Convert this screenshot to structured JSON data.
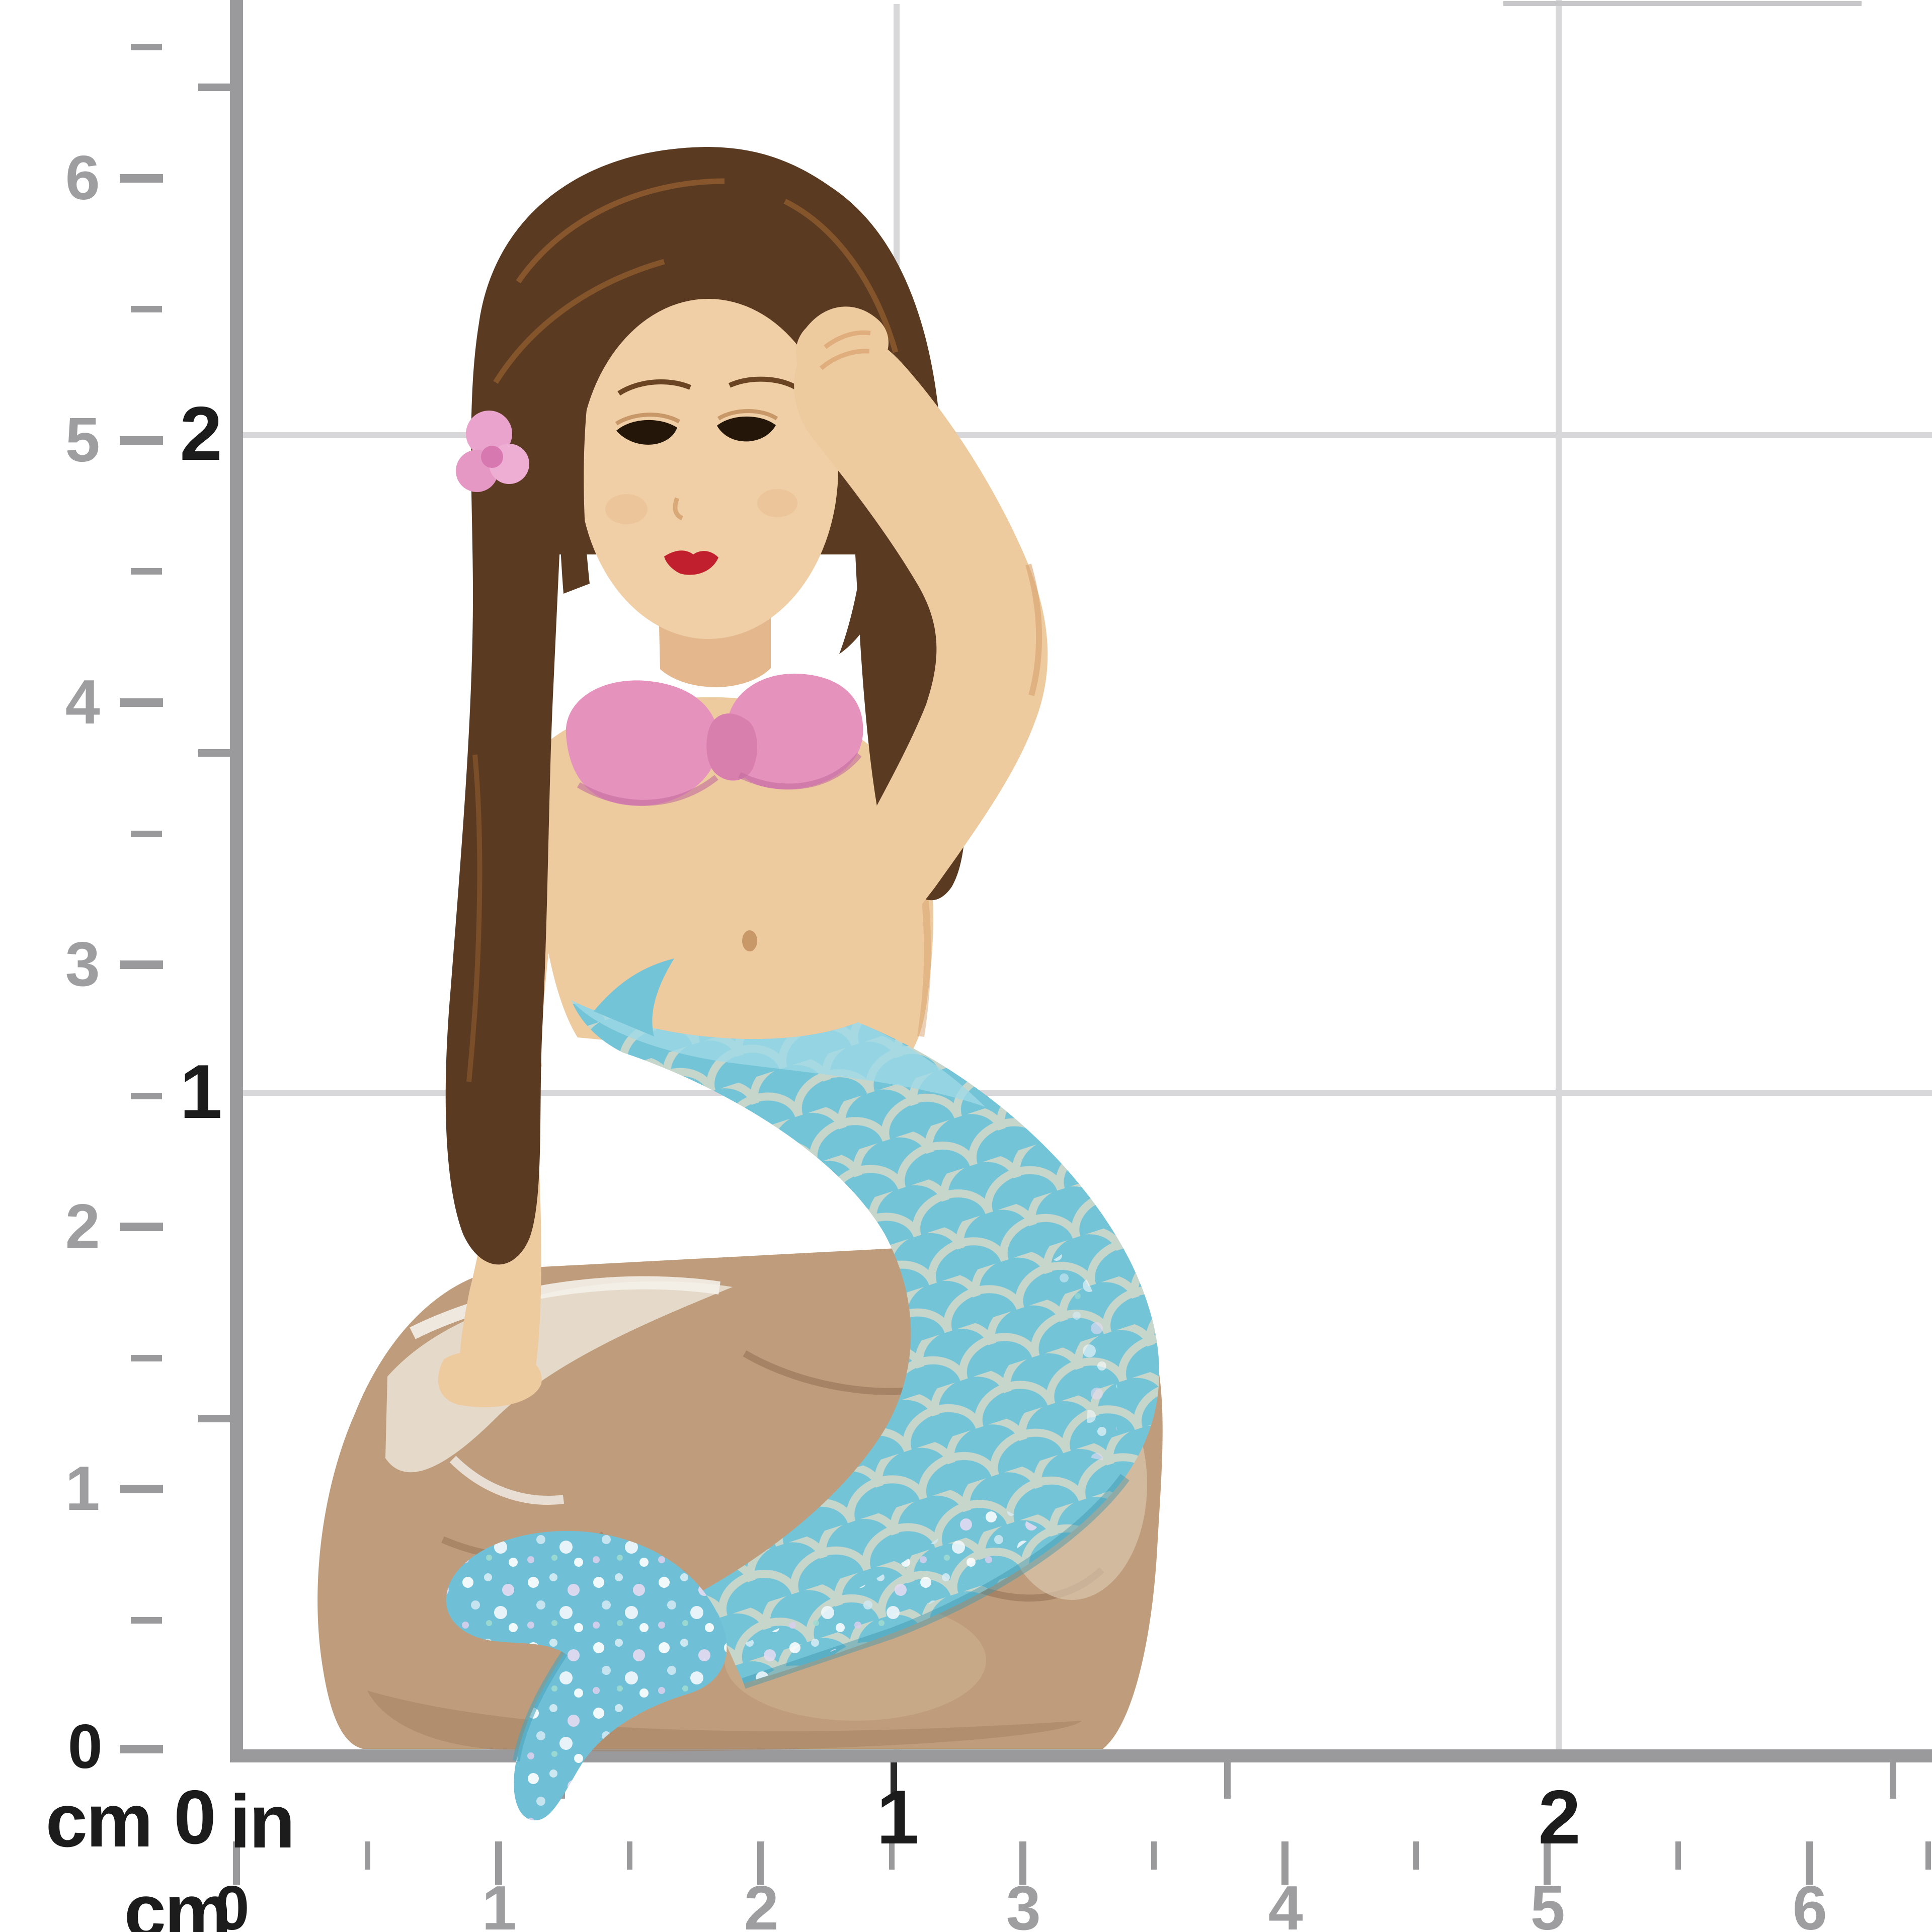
{
  "subject": {
    "description": "Miniature mermaid figurine with brown hair and pink bikini top, glittery teal tail, sitting on a tan rock",
    "parts": {
      "hair": "dark brown",
      "hair_accessory": "pink flower",
      "bikini_top": "pink",
      "tail": "teal blue with cream scales and iridescent glitter",
      "base": "tan sculpted rock",
      "lips": "red"
    }
  },
  "rulers": {
    "vertical_cm": {
      "unit": "cm",
      "labels": [
        "6",
        "5",
        "4",
        "3",
        "2",
        "1",
        "0"
      ]
    },
    "vertical_in": {
      "labels": [
        "2",
        "1"
      ]
    },
    "bottom_in": {
      "zero": "0",
      "unit": "in",
      "labels": [
        "1",
        "2"
      ]
    },
    "bottom_cm": {
      "unit": "cm",
      "labels": [
        "0",
        "1",
        "2",
        "3",
        "4",
        "5",
        "6"
      ]
    }
  },
  "colors": {
    "ruler_bar": "#9a9a9c",
    "tick_gray": "#9a9a9c",
    "tick_black": "#2b2b2b",
    "label_gray": "#9e9ea1",
    "label_black": "#1c1c1c",
    "gridline": "#d8d8da",
    "skin": "#eeca9f",
    "hair": "#5b3a22",
    "bikini_pink": "#e593bd",
    "tail_teal": "#74c4d8",
    "rock_tan": "#bf9d7c",
    "lips_red": "#c11f2d"
  }
}
